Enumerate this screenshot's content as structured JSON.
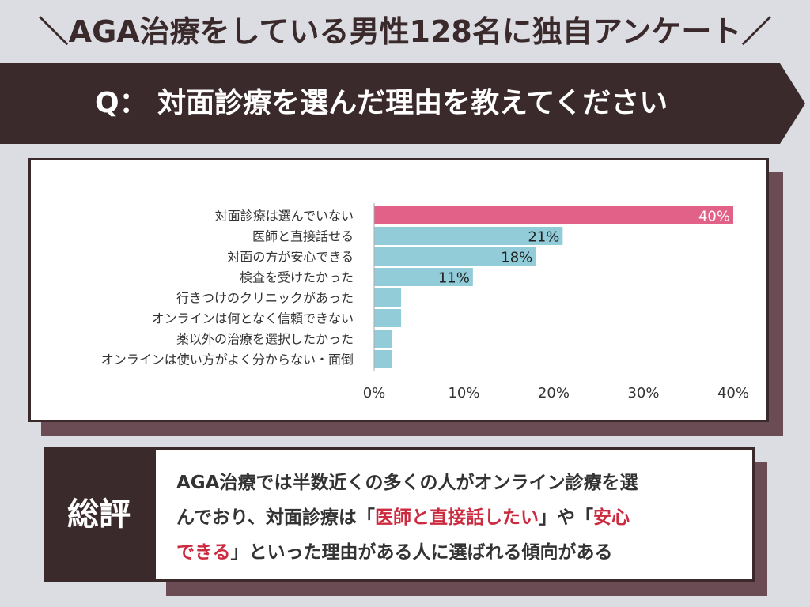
{
  "header": {
    "title": "＼AGA治療をしている男性128名に独自アンケート／",
    "question": "Q：  対面診療を選んだ理由を教えてください"
  },
  "colors": {
    "background": "#dcdde3",
    "dark": "#3a2a2c",
    "shadow": "#6b4c55",
    "highlight_bar": "#e26189",
    "bar": "#92ccd9",
    "highlight_text": "#cc2a3f"
  },
  "chart_data": {
    "type": "bar",
    "orientation": "horizontal",
    "categories": [
      "対面診療は選んでいない",
      "医師と直接話せる",
      "対面の方が安心できる",
      "検査を受けたかった",
      "行きつけのクリニックがあった",
      "オンラインは何となく信頼できない",
      "薬以外の治療を選択したかった",
      "オンラインは使い方がよく分からない・面倒"
    ],
    "values": [
      40,
      21,
      18,
      11,
      3,
      3,
      2,
      2
    ],
    "data_labels": [
      "40%",
      "21%",
      "18%",
      "11%",
      "",
      "",
      "",
      ""
    ],
    "xlim": [
      0,
      40
    ],
    "xticks": [
      "0%",
      "10%",
      "20%",
      "30%",
      "40%"
    ],
    "grid": false,
    "legend": "none"
  },
  "summary": {
    "label": "総評",
    "line1": "AGA治療では半数近くの多くの人がオンライン診療を選",
    "line2_a": "んでおり、対面診療は「",
    "line2_hl1": "医師と直接話したい",
    "line2_b": "」や「",
    "line2_hl2": "安心",
    "line3_hl": "できる",
    "line3_b": "」といった理由がある人に選ばれる傾向がある"
  }
}
